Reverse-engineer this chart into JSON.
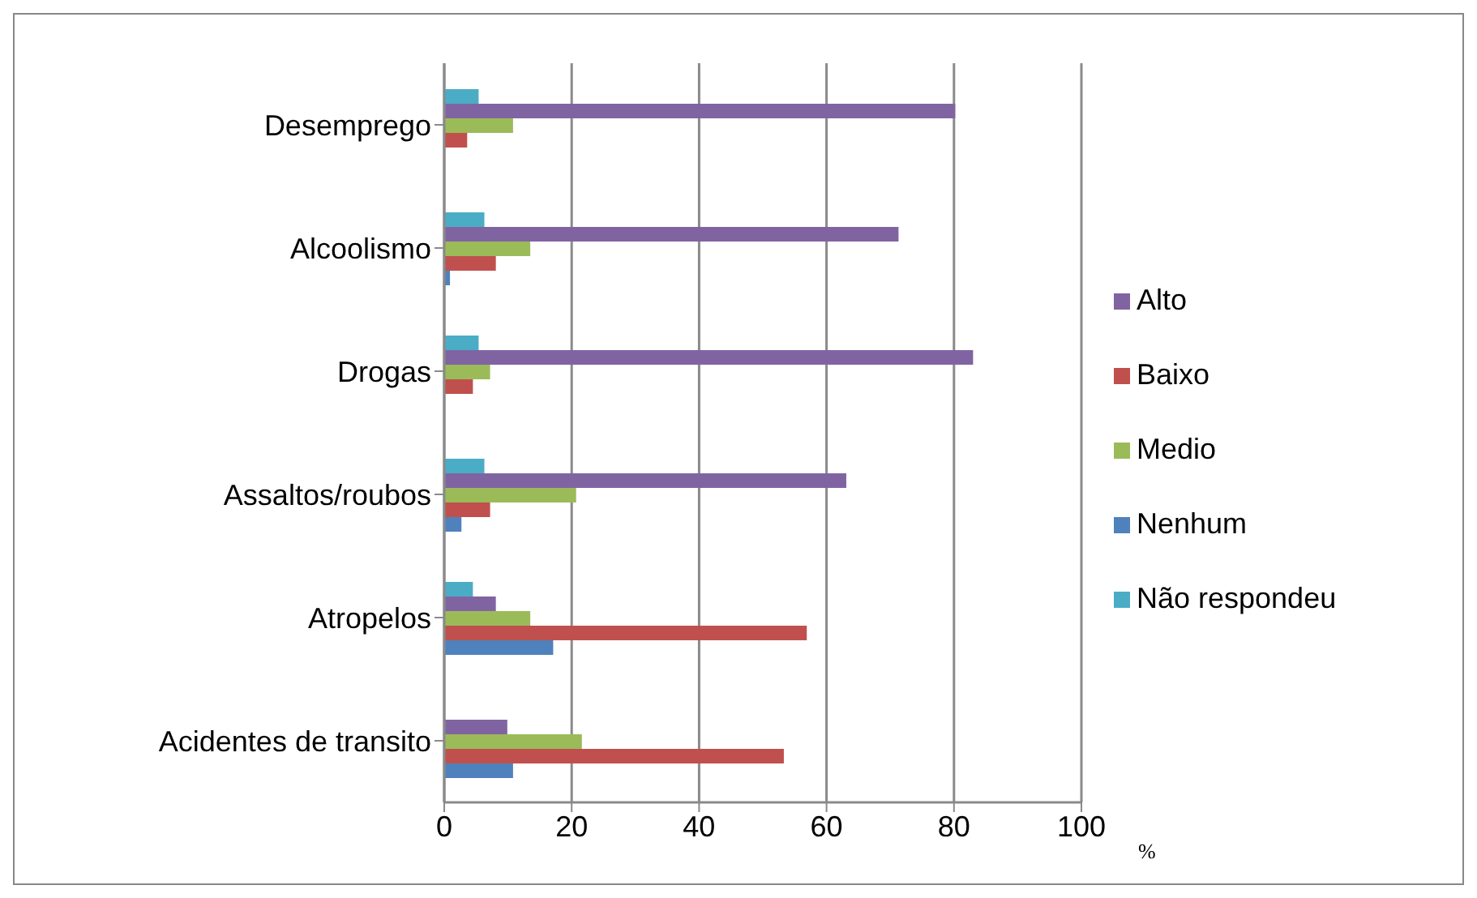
{
  "chart_data": {
    "type": "bar",
    "orientation": "horizontal",
    "xlabel": "%",
    "categories": [
      "Desemprego",
      "Alcoolismo",
      "Drogas",
      "Assaltos/roubos",
      "Atropelos",
      "Acidentes de transito"
    ],
    "series": [
      {
        "name": "Não respondeu",
        "color": "#4bacc6",
        "values": [
          5.4,
          6.3,
          5.4,
          6.3,
          4.5,
          null
        ]
      },
      {
        "name": "Alto",
        "color": "#8064a2",
        "values": [
          80.2,
          71.3,
          83,
          63.1,
          8.1,
          9.9
        ]
      },
      {
        "name": "Medio",
        "color": "#9bbb59",
        "values": [
          10.8,
          13.5,
          7.2,
          20.7,
          13.5,
          21.6
        ]
      },
      {
        "name": "Baixo",
        "color": "#c0504d",
        "values": [
          3.6,
          8.1,
          4.5,
          7.2,
          56.9,
          53.3
        ]
      },
      {
        "name": "Nenhum",
        "color": "#4f81bd",
        "values": [
          null,
          0.9,
          null,
          2.7,
          17.1,
          10.8
        ]
      }
    ],
    "xlim": [
      0,
      100
    ],
    "xticks": [
      0,
      20,
      40,
      60,
      80,
      100
    ],
    "grid": "x",
    "legend": "right"
  }
}
